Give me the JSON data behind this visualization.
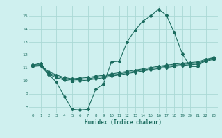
{
  "xlabel": "Humidex (Indice chaleur)",
  "background_color": "#cff0ef",
  "grid_color": "#aad9d5",
  "line_color": "#1a6b5e",
  "xlim": [
    -0.5,
    23.5
  ],
  "ylim": [
    7.5,
    15.8
  ],
  "xticks": [
    0,
    1,
    2,
    3,
    4,
    5,
    6,
    7,
    8,
    9,
    10,
    11,
    12,
    13,
    14,
    15,
    16,
    17,
    18,
    19,
    20,
    21,
    22,
    23
  ],
  "yticks": [
    8,
    9,
    10,
    11,
    12,
    13,
    14,
    15
  ],
  "line1_x": [
    0,
    1,
    2,
    3,
    4,
    5,
    6,
    7,
    8,
    9,
    10,
    11,
    12,
    13,
    14,
    15,
    16,
    17,
    18,
    19,
    20,
    21,
    22,
    23
  ],
  "line1_y": [
    11.2,
    11.35,
    10.5,
    9.9,
    8.8,
    7.8,
    7.75,
    7.8,
    9.35,
    9.75,
    11.45,
    11.5,
    13.0,
    13.9,
    14.6,
    15.0,
    15.5,
    15.05,
    13.7,
    12.1,
    11.1,
    11.1,
    11.65,
    11.75
  ],
  "line2_x": [
    0,
    1,
    2,
    3,
    4,
    5,
    6,
    7,
    8,
    9,
    10,
    11,
    12,
    13,
    14,
    15,
    16,
    17,
    18,
    19,
    20,
    21,
    22,
    23
  ],
  "line2_y": [
    11.2,
    11.25,
    10.7,
    10.45,
    10.25,
    10.15,
    10.2,
    10.25,
    10.35,
    10.42,
    10.52,
    10.62,
    10.72,
    10.82,
    10.92,
    11.02,
    11.12,
    11.2,
    11.28,
    11.35,
    11.4,
    11.45,
    11.65,
    11.8
  ],
  "line3_x": [
    0,
    1,
    2,
    3,
    4,
    5,
    6,
    7,
    8,
    9,
    10,
    11,
    12,
    13,
    14,
    15,
    16,
    17,
    18,
    19,
    20,
    21,
    22,
    23
  ],
  "line3_y": [
    11.15,
    11.2,
    10.6,
    10.35,
    10.15,
    10.05,
    10.1,
    10.15,
    10.25,
    10.33,
    10.43,
    10.53,
    10.63,
    10.73,
    10.83,
    10.93,
    11.03,
    11.11,
    11.19,
    11.26,
    11.31,
    11.36,
    11.56,
    11.71
  ],
  "line4_x": [
    0,
    1,
    2,
    3,
    4,
    5,
    6,
    7,
    8,
    9,
    10,
    11,
    12,
    13,
    14,
    15,
    16,
    17,
    18,
    19,
    20,
    21,
    22,
    23
  ],
  "line4_y": [
    11.1,
    11.15,
    10.5,
    10.25,
    10.05,
    9.95,
    10.0,
    10.05,
    10.15,
    10.23,
    10.35,
    10.45,
    10.55,
    10.65,
    10.75,
    10.85,
    10.95,
    11.03,
    11.11,
    11.18,
    11.23,
    11.28,
    11.5,
    11.65
  ]
}
